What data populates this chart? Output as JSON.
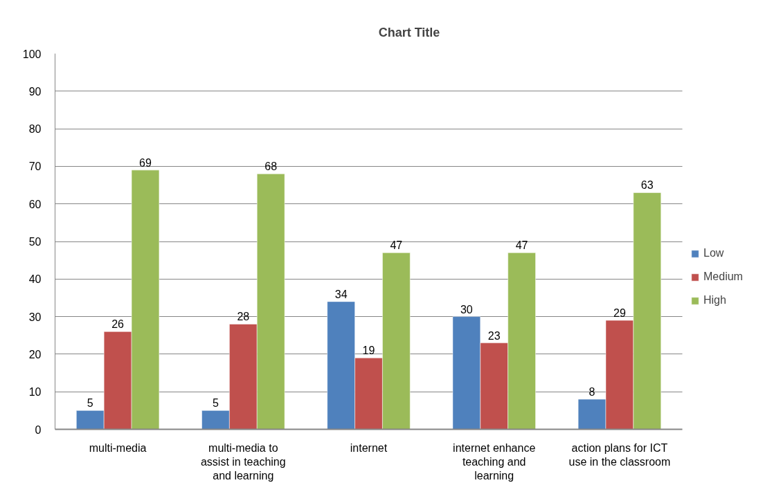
{
  "chart_data": {
    "type": "bar",
    "title": "Chart Title",
    "categories": [
      "multi-media",
      "multi-media to assist in teaching and learning",
      "internet",
      "internet enhance teaching and learning",
      "action plans for ICT use in the classroom"
    ],
    "series": [
      {
        "name": "Low",
        "color": "#4f81bd",
        "values": [
          5,
          5,
          34,
          30,
          8
        ]
      },
      {
        "name": "Medium",
        "color": "#c0504d",
        "values": [
          26,
          28,
          19,
          23,
          29
        ]
      },
      {
        "name": "High",
        "color": "#9bbb59",
        "values": [
          69,
          68,
          47,
          47,
          63
        ]
      }
    ],
    "ylim": [
      0,
      100
    ],
    "yticks": [
      0,
      10,
      20,
      30,
      40,
      50,
      60,
      70,
      80,
      90,
      100
    ],
    "grid": "y",
    "legend": "right",
    "data_labels": true
  }
}
